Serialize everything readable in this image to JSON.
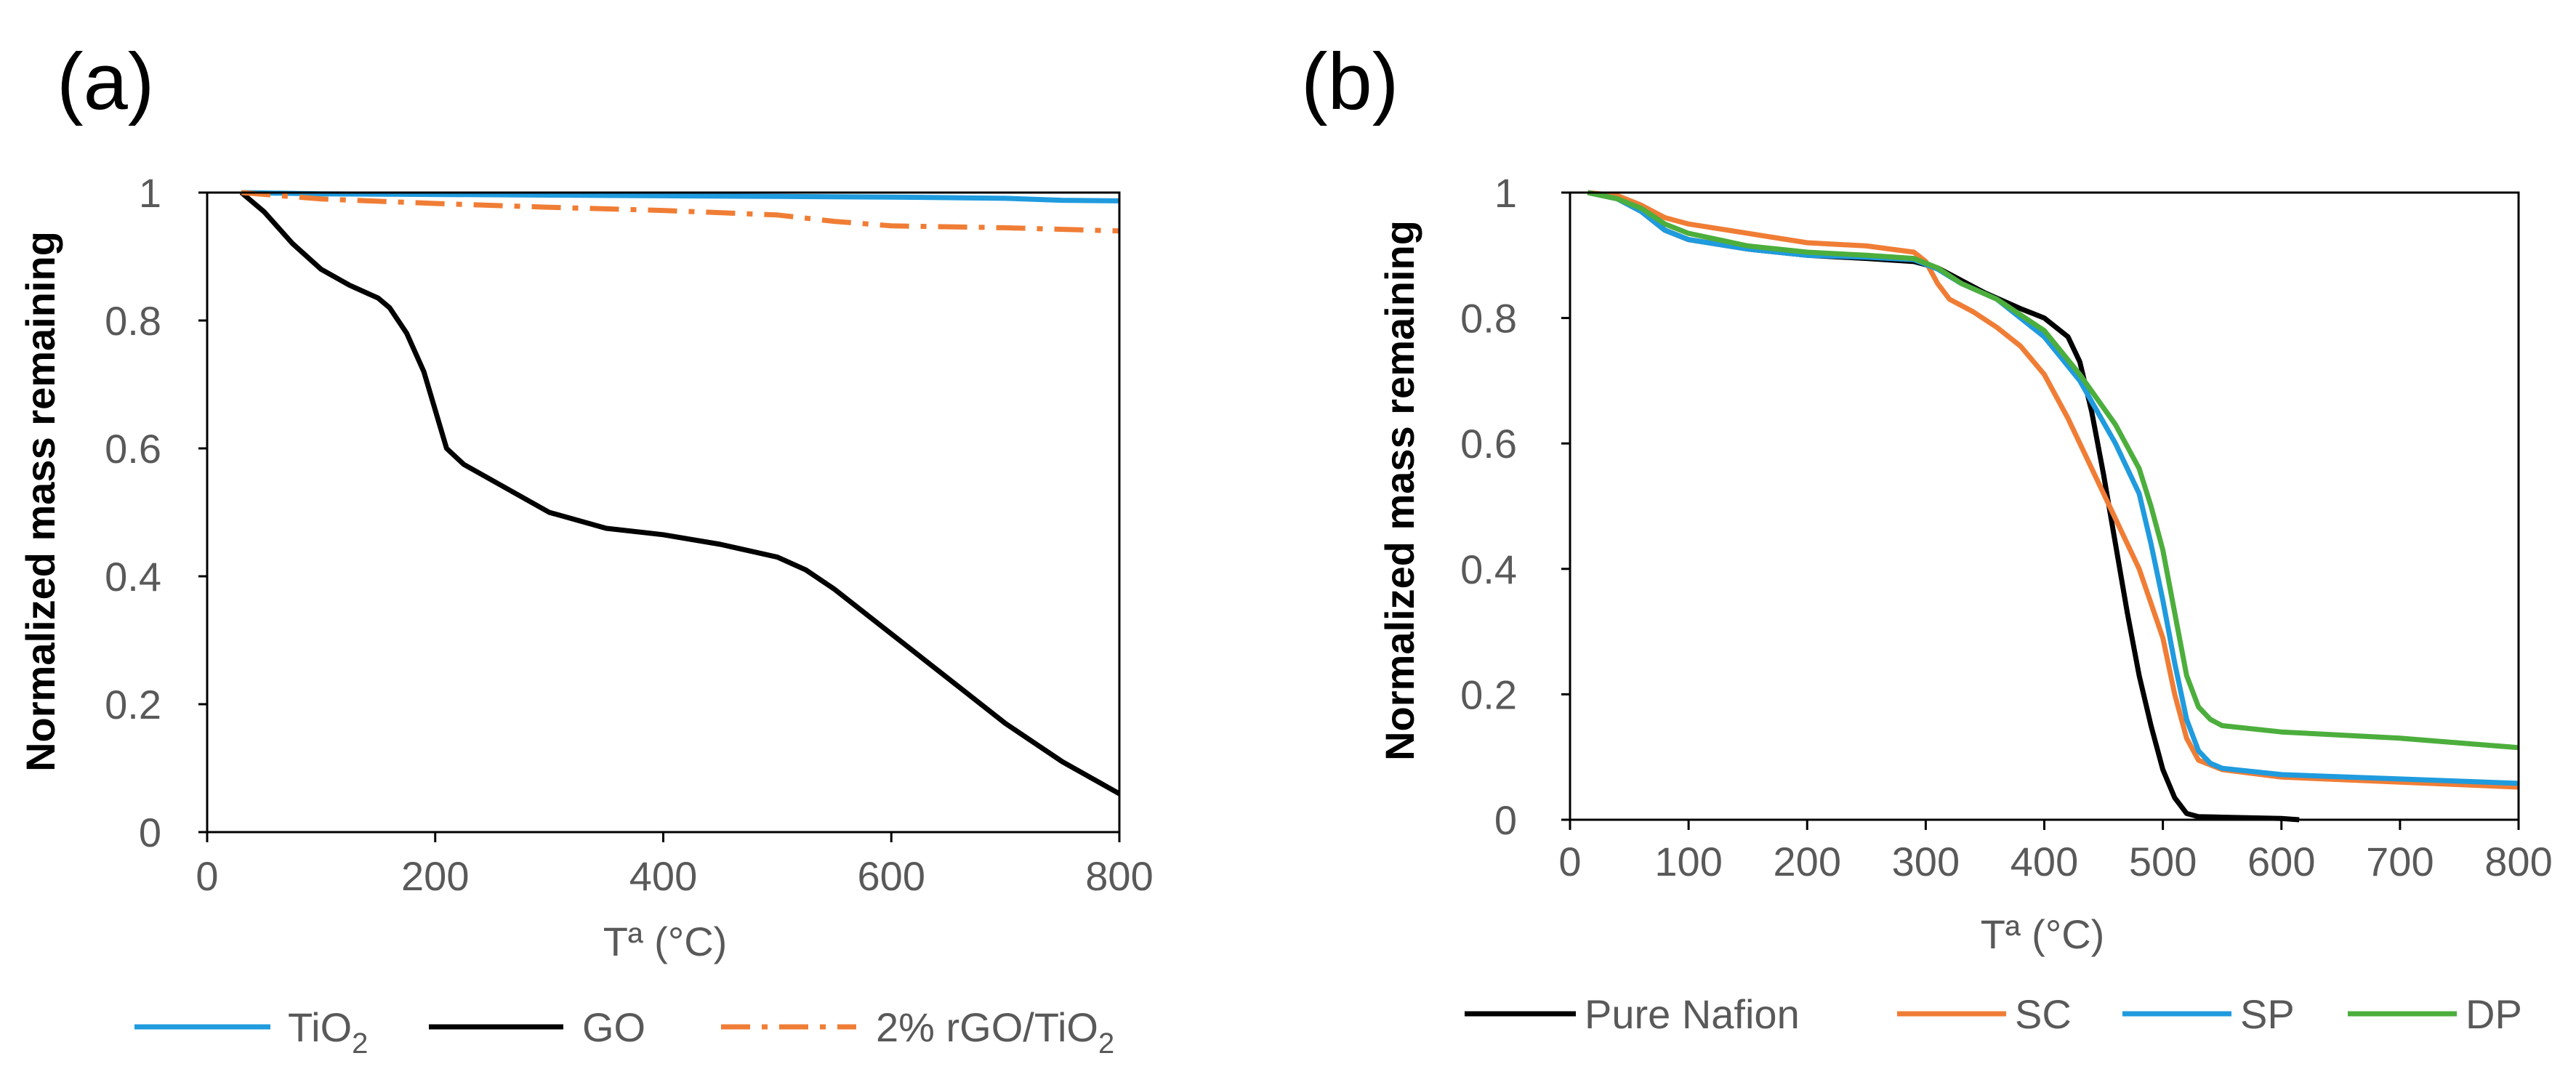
{
  "chart_data": [
    {
      "panel": "(a)",
      "type": "line",
      "xlabel": "Tª (°C)",
      "ylabel": "Normalized mass remaining",
      "xlim": [
        0,
        800
      ],
      "ylim": [
        0,
        1
      ],
      "xticks": [
        "0",
        "200",
        "400",
        "600",
        "800"
      ],
      "yticks": [
        "0",
        "0.2",
        "0.4",
        "0.6",
        "0.8",
        "1"
      ],
      "series": [
        {
          "name": "TiO",
          "name_sub": "2",
          "color": "#1f9bde",
          "dash": "solid",
          "x": [
            30,
            100,
            200,
            300,
            400,
            500,
            600,
            700,
            750,
            800
          ],
          "y": [
            1.0,
            0.998,
            0.997,
            0.996,
            0.995,
            0.994,
            0.993,
            0.991,
            0.988,
            0.987
          ]
        },
        {
          "name": "GO",
          "name_sub": "",
          "color": "#000000",
          "dash": "solid",
          "x": [
            30,
            50,
            75,
            100,
            125,
            150,
            160,
            175,
            190,
            200,
            210,
            225,
            250,
            300,
            350,
            400,
            450,
            500,
            525,
            550,
            600,
            650,
            700,
            750,
            800
          ],
          "y": [
            1.0,
            0.97,
            0.92,
            0.88,
            0.855,
            0.835,
            0.82,
            0.78,
            0.72,
            0.66,
            0.6,
            0.575,
            0.55,
            0.5,
            0.475,
            0.465,
            0.45,
            0.43,
            0.41,
            0.38,
            0.31,
            0.24,
            0.17,
            0.11,
            0.06
          ]
        },
        {
          "name": "2% rGO/TiO",
          "name_sub": "2",
          "color": "#f07d35",
          "dash": "dashdot",
          "x": [
            30,
            100,
            200,
            300,
            400,
            500,
            550,
            600,
            700,
            800
          ],
          "y": [
            1.0,
            0.99,
            0.983,
            0.977,
            0.972,
            0.965,
            0.955,
            0.948,
            0.945,
            0.94
          ]
        }
      ]
    },
    {
      "panel": "(b)",
      "type": "line",
      "xlabel": "Tª (°C)",
      "ylabel": "Normalized mass remaining",
      "xlim": [
        0,
        800
      ],
      "ylim": [
        0,
        1
      ],
      "xticks": [
        "0",
        "100",
        "200",
        "300",
        "400",
        "500",
        "600",
        "700",
        "800"
      ],
      "yticks": [
        "0",
        "0.2",
        "0.4",
        "0.6",
        "0.8",
        "1"
      ],
      "series": [
        {
          "name": "Pure Nafion",
          "name_sub": "",
          "color": "#000000",
          "dash": "solid",
          "x": [
            15,
            40,
            60,
            80,
            100,
            150,
            200,
            250,
            290,
            310,
            330,
            350,
            380,
            400,
            420,
            430,
            440,
            450,
            460,
            470,
            480,
            490,
            500,
            510,
            520,
            530,
            550,
            600,
            615
          ],
          "y": [
            1.0,
            0.99,
            0.97,
            0.94,
            0.925,
            0.91,
            0.9,
            0.895,
            0.89,
            0.88,
            0.86,
            0.84,
            0.815,
            0.8,
            0.77,
            0.73,
            0.65,
            0.55,
            0.44,
            0.33,
            0.23,
            0.15,
            0.08,
            0.035,
            0.01,
            0.005,
            0.004,
            0.002,
            0.0
          ]
        },
        {
          "name": "SC",
          "name_sub": "",
          "color": "#f07d35",
          "dash": "solid",
          "x": [
            15,
            40,
            60,
            80,
            100,
            150,
            200,
            250,
            290,
            300,
            310,
            320,
            340,
            360,
            380,
            400,
            420,
            440,
            460,
            480,
            500,
            510,
            520,
            530,
            550,
            600,
            700,
            800
          ],
          "y": [
            1.0,
            0.995,
            0.98,
            0.96,
            0.95,
            0.935,
            0.92,
            0.915,
            0.905,
            0.89,
            0.855,
            0.83,
            0.81,
            0.785,
            0.755,
            0.71,
            0.64,
            0.56,
            0.48,
            0.4,
            0.29,
            0.2,
            0.13,
            0.095,
            0.08,
            0.068,
            0.06,
            0.052
          ]
        },
        {
          "name": "SP",
          "name_sub": "",
          "color": "#1f9bde",
          "dash": "solid",
          "x": [
            15,
            40,
            60,
            80,
            100,
            150,
            200,
            250,
            290,
            310,
            330,
            360,
            400,
            430,
            460,
            480,
            490,
            500,
            510,
            520,
            530,
            540,
            550,
            600,
            700,
            800
          ],
          "y": [
            1.0,
            0.99,
            0.97,
            0.94,
            0.925,
            0.91,
            0.9,
            0.897,
            0.893,
            0.878,
            0.855,
            0.83,
            0.77,
            0.7,
            0.6,
            0.52,
            0.44,
            0.35,
            0.25,
            0.16,
            0.11,
            0.09,
            0.082,
            0.072,
            0.065,
            0.058
          ]
        },
        {
          "name": "DP",
          "name_sub": "",
          "color": "#4cae3c",
          "dash": "solid",
          "x": [
            15,
            40,
            60,
            80,
            100,
            150,
            200,
            250,
            290,
            310,
            330,
            360,
            400,
            430,
            460,
            480,
            490,
            500,
            510,
            520,
            530,
            540,
            550,
            600,
            700,
            800
          ],
          "y": [
            1.0,
            0.99,
            0.975,
            0.95,
            0.935,
            0.915,
            0.905,
            0.9,
            0.895,
            0.88,
            0.855,
            0.83,
            0.78,
            0.71,
            0.63,
            0.56,
            0.5,
            0.43,
            0.33,
            0.23,
            0.18,
            0.16,
            0.15,
            0.14,
            0.13,
            0.115
          ]
        }
      ]
    }
  ]
}
